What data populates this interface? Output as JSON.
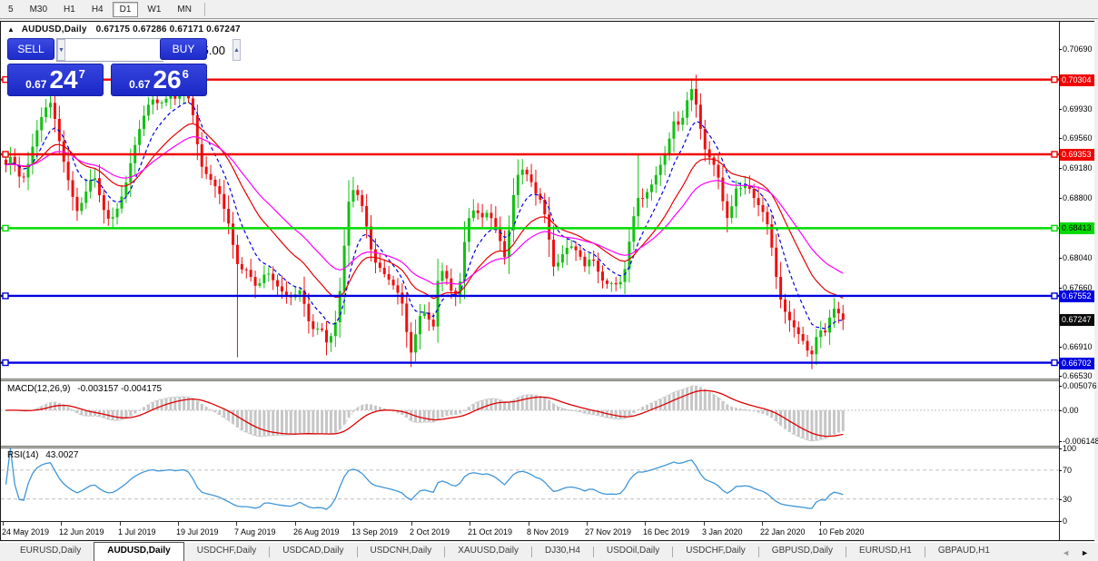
{
  "toolbar": {
    "timeframes": [
      "5",
      "M30",
      "H1",
      "H4",
      "D1",
      "W1",
      "MN"
    ],
    "active_timeframe": "D1"
  },
  "title_line": {
    "collapse_icon": "▲",
    "symbol": "AUDUSD,Daily",
    "ohlc": "0.67175 0.67286 0.67171 0.67247"
  },
  "trade_panel": {
    "sell_label": "SELL",
    "buy_label": "BUY",
    "volume": "5.00",
    "spin_down_icon": "▼",
    "spin_up_icon": "▲",
    "sell_price": {
      "prefix": "0.67",
      "big": "24",
      "sup": "7"
    },
    "buy_price": {
      "prefix": "0.67",
      "big": "26",
      "sup": "6"
    },
    "panel_blue": "#2433d4"
  },
  "chart_data": {
    "type": "candlestick",
    "symbol": "AUDUSD",
    "timeframe": "Daily",
    "ohlc_display": {
      "open": 0.67175,
      "high": 0.67286,
      "low": 0.67171,
      "close": 0.67247
    },
    "ylim": [
      0.665,
      0.7104
    ],
    "colors": {
      "up_candle": "#14c014",
      "down_candle": "#ee0f0f",
      "ma_fast": "#0000e0",
      "ma_mid": "#e60000",
      "ma_slow": "#ff00ff",
      "macd_hist": "#c6c6c6",
      "macd_signal": "#dd0000",
      "rsi_line": "#3f96d8",
      "level_red": "#f00000",
      "level_green": "#00dc00",
      "level_blue": "#0000e0",
      "current_badge_bg": "#0a0a0a"
    },
    "moving_averages": [
      {
        "name": "fast",
        "period": 8,
        "style": "dashed"
      },
      {
        "name": "medium",
        "period": 20,
        "style": "solid"
      },
      {
        "name": "slow",
        "period": 34,
        "style": "solid"
      }
    ],
    "levels": [
      {
        "price": 0.70304,
        "label": "0.70304",
        "kind": "resistance",
        "color_key": "level_red",
        "text": "#fff"
      },
      {
        "price": 0.69353,
        "label": "0.69353",
        "kind": "resistance",
        "color_key": "level_red",
        "text": "#fff"
      },
      {
        "price": 0.68413,
        "label": "0.68413",
        "kind": "pivot",
        "color_key": "level_green",
        "text": "#000"
      },
      {
        "price": 0.67552,
        "label": "0.67552",
        "kind": "support",
        "color_key": "level_blue",
        "text": "#fff"
      },
      {
        "price": 0.66702,
        "label": "0.66702",
        "kind": "support",
        "color_key": "level_blue",
        "text": "#fff"
      }
    ],
    "current_price": {
      "value": 0.67247,
      "label": "0.67247"
    },
    "y_axis_ticks": {
      "start": 0.6653,
      "step": 0.0038,
      "visible_labels": [
        "0.70690",
        "0.69930",
        "0.69560",
        "0.69180",
        "0.68800",
        "0.68040",
        "0.67660",
        "0.66910",
        "0.66530"
      ]
    },
    "x_axis_dates": [
      "24 May 2019",
      "12 Jun 2019",
      "1 Jul 2019",
      "19 Jul 2019",
      "7 Aug 2019",
      "26 Aug 2019",
      "13 Sep 2019",
      "2 Oct 2019",
      "21 Oct 2019",
      "8 Nov 2019",
      "27 Nov 2019",
      "16 Dec 2019",
      "3 Jan 2020",
      "22 Jan 2020",
      "10 Feb 2020"
    ],
    "close_path_anchors": [
      [
        0,
        0.693
      ],
      [
        6,
        0.6921
      ],
      [
        12,
        0.6936
      ],
      [
        18,
        0.691
      ],
      [
        24,
        0.6902
      ],
      [
        30,
        0.6923
      ],
      [
        36,
        0.695
      ],
      [
        42,
        0.6975
      ],
      [
        48,
        0.6992
      ],
      [
        54,
        0.7003
      ],
      [
        60,
        0.6978
      ],
      [
        66,
        0.6942
      ],
      [
        72,
        0.6912
      ],
      [
        78,
        0.6885
      ],
      [
        84,
        0.6863
      ],
      [
        90,
        0.6876
      ],
      [
        96,
        0.6895
      ],
      [
        102,
        0.6912
      ],
      [
        108,
        0.6885
      ],
      [
        114,
        0.6862
      ],
      [
        120,
        0.685
      ],
      [
        126,
        0.686
      ],
      [
        132,
        0.6878
      ],
      [
        138,
        0.69
      ],
      [
        144,
        0.693
      ],
      [
        150,
        0.6958
      ],
      [
        156,
        0.698
      ],
      [
        162,
        0.6998
      ],
      [
        168,
        0.7006
      ],
      [
        174,
        0.6998
      ],
      [
        180,
        0.7004
      ],
      [
        186,
        0.701
      ],
      [
        192,
        0.7006
      ],
      [
        198,
        0.7011
      ],
      [
        204,
        0.7014
      ],
      [
        210,
        0.6996
      ],
      [
        216,
        0.695
      ],
      [
        222,
        0.6915
      ],
      [
        228,
        0.6908
      ],
      [
        234,
        0.6898
      ],
      [
        240,
        0.6888
      ],
      [
        246,
        0.6865
      ],
      [
        252,
        0.6842
      ],
      [
        258,
        0.6805
      ],
      [
        263,
        0.6786
      ],
      [
        268,
        0.6792
      ],
      [
        274,
        0.6782
      ],
      [
        280,
        0.6768
      ],
      [
        286,
        0.6772
      ],
      [
        292,
        0.6788
      ],
      [
        298,
        0.6778
      ],
      [
        304,
        0.6768
      ],
      [
        310,
        0.676
      ],
      [
        316,
        0.6755
      ],
      [
        322,
        0.6752
      ],
      [
        328,
        0.6766
      ],
      [
        334,
        0.6745
      ],
      [
        340,
        0.6718
      ],
      [
        346,
        0.671
      ],
      [
        352,
        0.6718
      ],
      [
        358,
        0.6695
      ],
      [
        364,
        0.6705
      ],
      [
        370,
        0.6728
      ],
      [
        376,
        0.679
      ],
      [
        382,
        0.6872
      ],
      [
        388,
        0.689
      ],
      [
        394,
        0.6882
      ],
      [
        400,
        0.6862
      ],
      [
        406,
        0.682
      ],
      [
        412,
        0.6798
      ],
      [
        418,
        0.679
      ],
      [
        424,
        0.678
      ],
      [
        430,
        0.6772
      ],
      [
        436,
        0.6762
      ],
      [
        442,
        0.6745
      ],
      [
        448,
        0.67
      ],
      [
        453,
        0.6677
      ],
      [
        458,
        0.6718
      ],
      [
        464,
        0.6738
      ],
      [
        470,
        0.6728
      ],
      [
        476,
        0.6714
      ],
      [
        482,
        0.6785
      ],
      [
        488,
        0.6788
      ],
      [
        494,
        0.6766
      ],
      [
        500,
        0.6752
      ],
      [
        506,
        0.6775
      ],
      [
        512,
        0.684
      ],
      [
        518,
        0.6865
      ],
      [
        524,
        0.6862
      ],
      [
        530,
        0.6855
      ],
      [
        536,
        0.6862
      ],
      [
        542,
        0.685
      ],
      [
        548,
        0.6835
      ],
      [
        554,
        0.68
      ],
      [
        560,
        0.6842
      ],
      [
        566,
        0.6898
      ],
      [
        572,
        0.6918
      ],
      [
        578,
        0.6912
      ],
      [
        584,
        0.69
      ],
      [
        590,
        0.6882
      ],
      [
        596,
        0.6875
      ],
      [
        602,
        0.684
      ],
      [
        608,
        0.6792
      ],
      [
        614,
        0.6798
      ],
      [
        620,
        0.6812
      ],
      [
        626,
        0.682
      ],
      [
        632,
        0.6815
      ],
      [
        638,
        0.6805
      ],
      [
        644,
        0.679
      ],
      [
        650,
        0.6808
      ],
      [
        656,
        0.679
      ],
      [
        662,
        0.6775
      ],
      [
        668,
        0.677
      ],
      [
        674,
        0.6772
      ],
      [
        680,
        0.6768
      ],
      [
        686,
        0.6782
      ],
      [
        691,
        0.6818
      ],
      [
        696,
        0.6852
      ],
      [
        701,
        0.688
      ],
      [
        706,
        0.6878
      ],
      [
        712,
        0.6888
      ],
      [
        718,
        0.69
      ],
      [
        724,
        0.6916
      ],
      [
        730,
        0.6932
      ],
      [
        736,
        0.6955
      ],
      [
        742,
        0.6982
      ],
      [
        748,
        0.6968
      ],
      [
        754,
        0.6998
      ],
      [
        760,
        0.702
      ],
      [
        764,
        0.7008
      ],
      [
        768,
        0.6982
      ],
      [
        772,
        0.6958
      ],
      [
        776,
        0.6938
      ],
      [
        781,
        0.693
      ],
      [
        786,
        0.692
      ],
      [
        791,
        0.6902
      ],
      [
        796,
        0.6868
      ],
      [
        801,
        0.685
      ],
      [
        806,
        0.6876
      ],
      [
        811,
        0.6898
      ],
      [
        816,
        0.689
      ],
      [
        821,
        0.6898
      ],
      [
        826,
        0.6888
      ],
      [
        831,
        0.6875
      ],
      [
        836,
        0.6868
      ],
      [
        841,
        0.6858
      ],
      [
        846,
        0.6838
      ],
      [
        851,
        0.68
      ],
      [
        856,
        0.6762
      ],
      [
        861,
        0.674
      ],
      [
        866,
        0.673
      ],
      [
        871,
        0.6718
      ],
      [
        876,
        0.6712
      ],
      [
        881,
        0.67
      ],
      [
        886,
        0.6695
      ],
      [
        891,
        0.6672
      ],
      [
        896,
        0.6695
      ],
      [
        901,
        0.6716
      ],
      [
        906,
        0.6702
      ],
      [
        911,
        0.6722
      ],
      [
        916,
        0.674
      ],
      [
        921,
        0.6736
      ],
      [
        926,
        0.67247
      ]
    ],
    "wick_spikes": [
      {
        "x": 55,
        "side": "high",
        "price": 0.7022
      },
      {
        "x": 205,
        "side": "high",
        "price": 0.7016
      },
      {
        "x": 261,
        "side": "low",
        "price": 0.6677
      },
      {
        "x": 451,
        "side": "low",
        "price": 0.667
      },
      {
        "x": 699,
        "side": "high",
        "price": 0.6936
      },
      {
        "x": 761,
        "side": "high",
        "price": 0.7032
      },
      {
        "x": 892,
        "side": "low",
        "price": 0.6662
      }
    ],
    "indicators": {
      "macd": {
        "label": "MACD(12,26,9)",
        "values_text": "-0.003157 -0.004175",
        "main": -0.003157,
        "signal": -0.004175,
        "axis_labels": [
          "0.005076",
          "0.00",
          "-0.006148"
        ],
        "axis_values": [
          0.005076,
          0.0,
          -0.006148
        ]
      },
      "rsi": {
        "label": "RSI(14)",
        "values_text": "43.0027",
        "value": 43.0027,
        "axis_labels": [
          "100",
          "70",
          "30",
          "0"
        ],
        "axis_values": [
          100,
          70,
          30,
          0
        ],
        "guide_levels": [
          70,
          30
        ]
      }
    }
  },
  "tabs": {
    "items": [
      {
        "label": "EURUSD,Daily",
        "active": false
      },
      {
        "label": "AUDUSD,Daily",
        "active": true
      },
      {
        "label": "USDCHF,Daily",
        "active": false
      },
      {
        "label": "USDCAD,Daily",
        "active": false
      },
      {
        "label": "USDCNH,Daily",
        "active": false
      },
      {
        "label": "XAUUSD,Daily",
        "active": false
      },
      {
        "label": "DJ30,H4",
        "active": false
      },
      {
        "label": "USDOil,Daily",
        "active": false
      },
      {
        "label": "USDCHF,Daily",
        "active": false
      },
      {
        "label": "GBPUSD,Daily",
        "active": false
      },
      {
        "label": "EURUSD,H1",
        "active": false
      },
      {
        "label": "GBPAUD,H1",
        "active": false
      }
    ],
    "scroll_left_icon": "◄",
    "scroll_right_icon": "►"
  }
}
